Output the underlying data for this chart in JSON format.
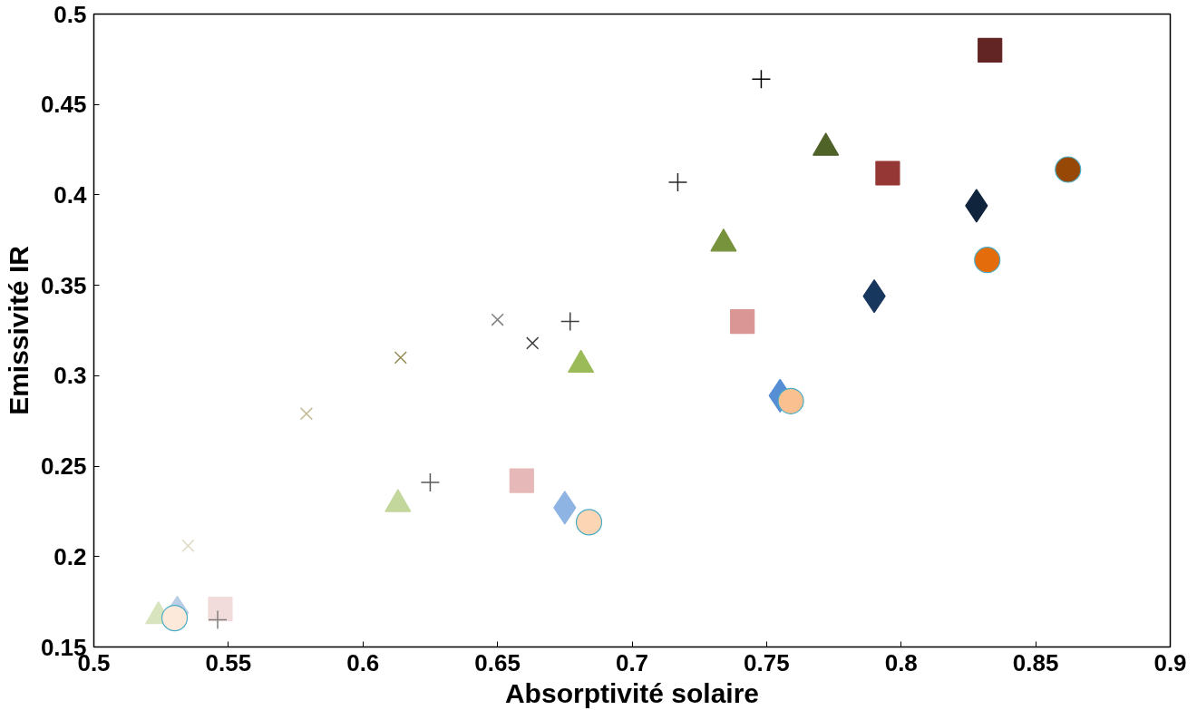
{
  "chart_data": {
    "type": "scatter",
    "xlabel": "Absorptivité solaire",
    "ylabel": "Emissivité IR",
    "xlim": [
      0.5,
      0.9
    ],
    "ylim": [
      0.15,
      0.5
    ],
    "xticks": [
      0.5,
      0.55,
      0.6,
      0.65,
      0.7,
      0.75,
      0.8,
      0.85,
      0.9
    ],
    "yticks": [
      0.15,
      0.2,
      0.25,
      0.3,
      0.35,
      0.4,
      0.45,
      0.5
    ],
    "grid": false,
    "series": [
      {
        "marker": "square",
        "x": [
          0.547,
          0.659,
          0.741,
          0.795,
          0.833
        ],
        "values": [
          0.171,
          0.242,
          0.33,
          0.412,
          0.48
        ],
        "colors": [
          "#f2dcdb",
          "#e6b9b8",
          "#d99694",
          "#953735",
          "#632523"
        ]
      },
      {
        "marker": "triangle",
        "x": [
          0.524,
          0.613,
          0.681,
          0.734,
          0.772
        ],
        "values": [
          0.167,
          0.229,
          0.306,
          0.373,
          0.426
        ],
        "colors": [
          "#d7e4bd",
          "#c3d69b",
          "#9bbb59",
          "#77933c",
          "#4f6228"
        ]
      },
      {
        "marker": "diamond",
        "x": [
          0.531,
          0.675,
          0.755,
          0.79,
          0.828
        ],
        "values": [
          0.169,
          0.227,
          0.289,
          0.344,
          0.394
        ],
        "colors": [
          "#b9cde5",
          "#8eb4e3",
          "#558ed5",
          "#17375e",
          "#10243e"
        ]
      },
      {
        "marker": "circle",
        "x": [
          0.53,
          0.684,
          0.759,
          0.832,
          0.862
        ],
        "values": [
          0.166,
          0.219,
          0.286,
          0.364,
          0.414
        ],
        "colors": [
          "#fde9d9",
          "#fcd5b4",
          "#fac090",
          "#e46c0a",
          "#974806"
        ]
      },
      {
        "marker": "cross",
        "x": [
          0.546,
          0.625,
          0.677,
          0.717,
          0.748
        ],
        "values": [
          0.165,
          0.241,
          0.33,
          0.407,
          0.464
        ],
        "colors": [
          "#808080",
          "#595959",
          "#404040",
          "#262626",
          "#000000"
        ]
      },
      {
        "marker": "x",
        "x": [
          0.535,
          0.579,
          0.614,
          0.65,
          0.663
        ],
        "values": [
          0.206,
          0.279,
          0.31,
          0.331,
          0.318
        ],
        "colors": [
          "#ddd9c3",
          "#c4bd97",
          "#948a54",
          "#7f7f7f",
          "#404040"
        ]
      }
    ]
  }
}
